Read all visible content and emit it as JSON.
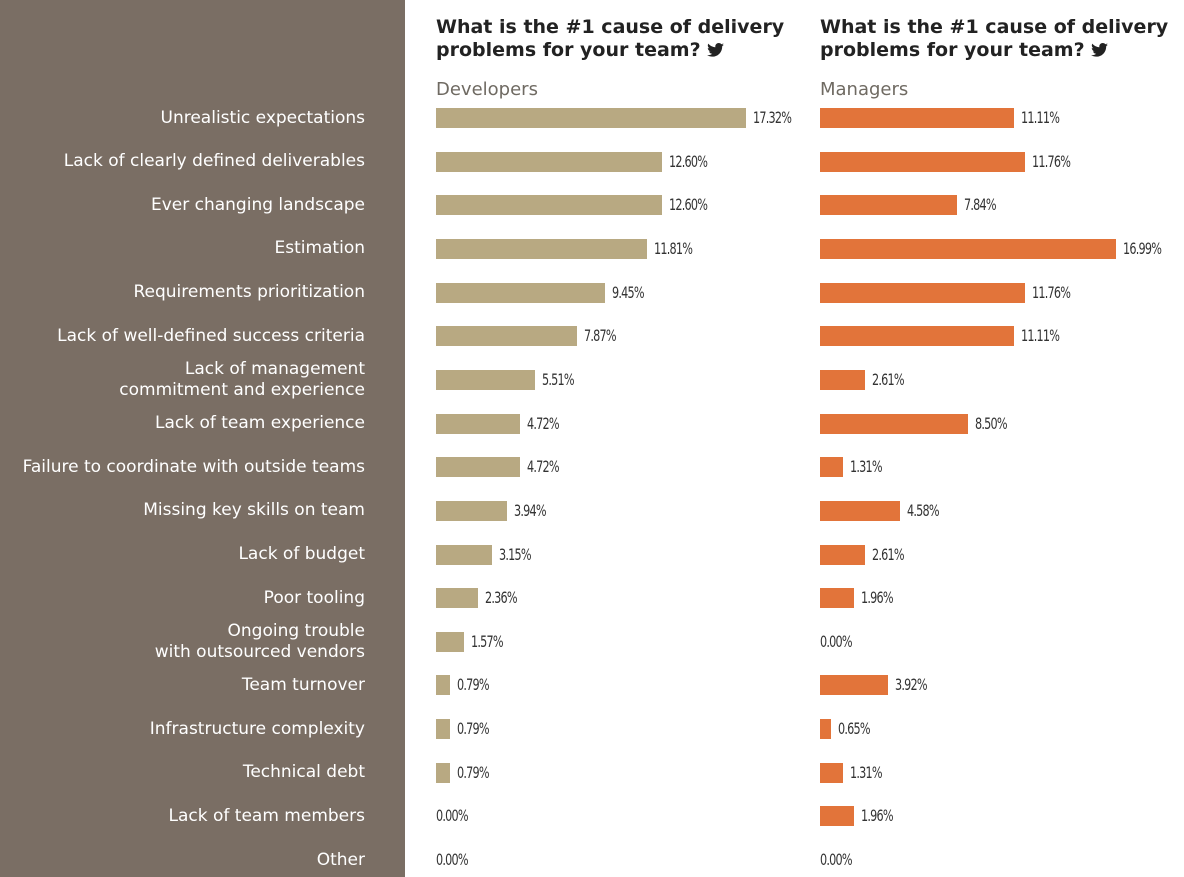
{
  "sidebar_color": "#7a6e64",
  "chart_data": [
    {
      "type": "bar",
      "orientation": "horizontal",
      "title": "What is the #1 cause of delivery problems for your team?",
      "title_icon": "twitter-bird-icon",
      "subtitle": "Developers",
      "color": "#b8a982",
      "categories": [
        "Unrealistic expectations",
        "Lack of clearly defined deliverables",
        "Ever changing landscape",
        "Estimation",
        "Requirements prioritization",
        "Lack of well-defined success criteria",
        "Lack of management\ncommitment and experience",
        "Lack of team experience",
        "Failure to coordinate with outside teams",
        "Missing key skills on team",
        "Lack of budget",
        "Poor tooling",
        "Ongoing trouble\nwith outsourced vendors",
        "Team turnover",
        "Infrastructure complexity",
        "Technical debt",
        "Lack of team members",
        "Other"
      ],
      "values": [
        17.32,
        12.6,
        12.6,
        11.81,
        9.45,
        7.87,
        5.51,
        4.72,
        4.72,
        3.94,
        3.15,
        2.36,
        1.57,
        0.79,
        0.79,
        0.79,
        0.0,
        0.0
      ],
      "value_labels": [
        "17.32%",
        "12.60%",
        "12.60%",
        "11.81%",
        "9.45%",
        "7.87%",
        "5.51%",
        "4.72%",
        "4.72%",
        "3.94%",
        "3.15%",
        "2.36%",
        "1.57%",
        "0.79%",
        "0.79%",
        "0.79%",
        "0.00%",
        "0.00%"
      ],
      "xlim": [
        0,
        17.32
      ]
    },
    {
      "type": "bar",
      "orientation": "horizontal",
      "title": "What is the #1 cause of delivery problems for your team?",
      "title_icon": "twitter-bird-icon",
      "subtitle": "Managers",
      "color": "#e2743a",
      "values": [
        11.11,
        11.76,
        7.84,
        16.99,
        11.76,
        11.11,
        2.61,
        8.5,
        1.31,
        4.58,
        2.61,
        1.96,
        0.0,
        3.92,
        0.65,
        1.31,
        1.96,
        0.0
      ],
      "value_labels": [
        "11.11%",
        "11.76%",
        "7.84%",
        "16.99%",
        "11.76%",
        "11.11%",
        "2.61%",
        "8.50%",
        "1.31%",
        "4.58%",
        "2.61%",
        "1.96%",
        "0.00%",
        "3.92%",
        "0.65%",
        "1.31%",
        "1.96%",
        "0.00%"
      ],
      "xlim": [
        0,
        16.99
      ]
    }
  ]
}
